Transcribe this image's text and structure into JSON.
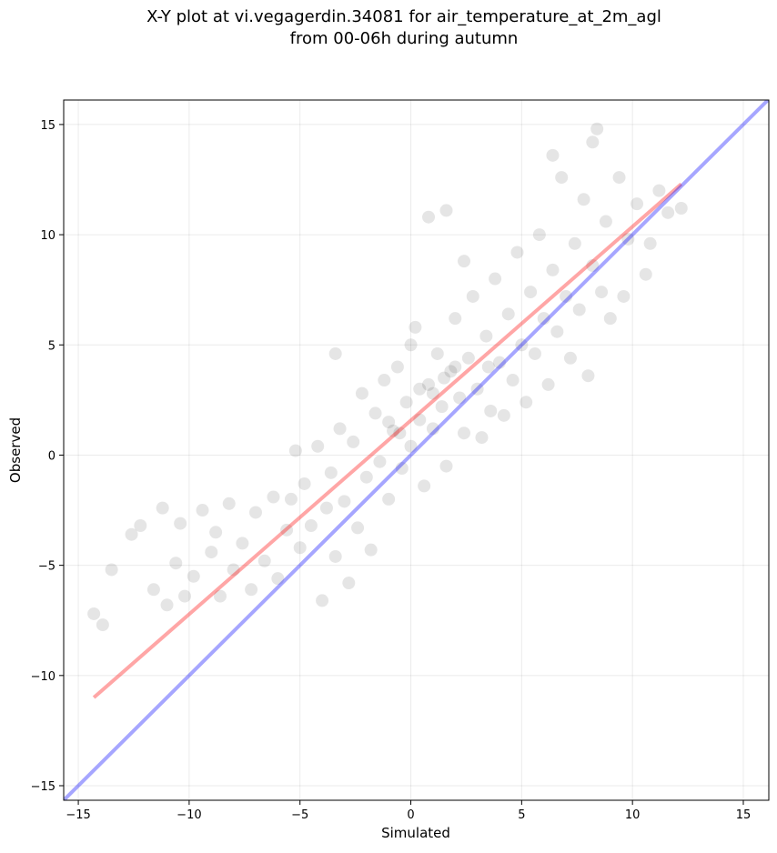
{
  "chart_data": {
    "type": "scatter",
    "title_lines": [
      "X-Y plot at vi.vegagerdin.34081 for air_temperature_at_2m_agl",
      "from 00-06h during autumn"
    ],
    "xlabel": "Simulated",
    "ylabel": "Observed",
    "xlim": [
      -15.66,
      16.15
    ],
    "ylim": [
      -15.66,
      16.11
    ],
    "xticks": [
      {
        "value": -15,
        "label": "−15"
      },
      {
        "value": -10,
        "label": "−10"
      },
      {
        "value": -5,
        "label": "−5"
      },
      0,
      5,
      10,
      15
    ],
    "yticks": [
      {
        "value": -15,
        "label": "−15"
      },
      {
        "value": -10,
        "label": "−10"
      },
      {
        "value": -5,
        "label": "−5"
      },
      0,
      5,
      10,
      15
    ],
    "grid": true,
    "series": [
      {
        "type": "scatter",
        "color": "#000000",
        "opacity": 0.1,
        "x": [
          -14.3,
          -13.9,
          -13.5,
          -12.6,
          -12.2,
          -11.6,
          -11.2,
          -11.0,
          -10.6,
          -10.4,
          -10.2,
          -9.8,
          -9.4,
          -9.0,
          -8.8,
          -8.6,
          -8.2,
          -8.0,
          -7.6,
          -7.2,
          -7.0,
          -6.6,
          -6.2,
          -6.0,
          -5.6,
          -5.4,
          -5.2,
          -5.0,
          -4.8,
          -4.5,
          -4.2,
          -4.0,
          -3.8,
          -3.6,
          -3.4,
          -3.2,
          -3.0,
          -2.8,
          -2.6,
          -2.4,
          -2.2,
          -2.0,
          -1.8,
          -1.6,
          -1.4,
          -1.2,
          -1.0,
          -0.8,
          -0.6,
          -0.4,
          -0.2,
          0.0,
          0.2,
          0.4,
          0.6,
          0.8,
          1.0,
          1.2,
          1.4,
          1.6,
          1.8,
          2.0,
          2.2,
          2.4,
          2.6,
          2.8,
          3.0,
          3.2,
          3.4,
          3.6,
          3.8,
          4.0,
          4.2,
          4.4,
          4.6,
          4.8,
          5.0,
          5.2,
          5.4,
          5.6,
          5.8,
          6.0,
          6.2,
          6.4,
          6.6,
          6.8,
          7.0,
          7.2,
          7.4,
          7.6,
          7.8,
          8.0,
          8.2,
          8.4,
          8.6,
          8.8,
          9.0,
          9.4,
          9.6,
          9.8,
          10.2,
          10.6,
          10.8,
          11.2,
          11.6,
          12.2,
          1.6,
          0.8,
          6.4,
          8.2,
          -3.4,
          0.0,
          2.4,
          0.4,
          1.0,
          1.5,
          2.0,
          -0.5,
          -1.0,
          3.5
        ],
        "y": [
          -7.2,
          -7.7,
          -5.2,
          -3.6,
          -3.2,
          -6.1,
          -2.4,
          -6.8,
          -4.9,
          -3.1,
          -6.4,
          -5.5,
          -2.5,
          -4.4,
          -3.5,
          -6.4,
          -2.2,
          -5.2,
          -4.0,
          -6.1,
          -2.6,
          -4.8,
          -1.9,
          -5.6,
          -3.4,
          -2.0,
          0.2,
          -4.2,
          -1.3,
          -3.2,
          0.4,
          -6.6,
          -2.4,
          -0.8,
          -4.6,
          1.2,
          -2.1,
          -5.8,
          0.6,
          -3.3,
          2.8,
          -1.0,
          -4.3,
          1.9,
          -0.3,
          3.4,
          -2.0,
          1.1,
          4.0,
          -0.6,
          2.4,
          0.4,
          5.8,
          1.6,
          -1.4,
          3.2,
          1.2,
          4.6,
          2.2,
          -0.5,
          3.8,
          6.2,
          2.6,
          1.0,
          4.4,
          7.2,
          3.0,
          0.8,
          5.4,
          2.0,
          8.0,
          4.2,
          1.8,
          6.4,
          3.4,
          9.2,
          5.0,
          2.4,
          7.4,
          4.6,
          10.0,
          6.2,
          3.2,
          8.4,
          5.6,
          12.6,
          7.2,
          4.4,
          9.6,
          6.6,
          11.6,
          3.6,
          8.6,
          14.8,
          7.4,
          10.6,
          6.2,
          12.6,
          7.2,
          9.8,
          11.4,
          8.2,
          9.6,
          12.0,
          11.0,
          11.2,
          11.1,
          10.8,
          13.6,
          14.2,
          4.6,
          5.0,
          8.8,
          3.0,
          2.8,
          3.5,
          4.0,
          1.0,
          1.5,
          4.0
        ]
      },
      {
        "type": "line",
        "color": "#ff0000",
        "opacity": 0.35,
        "x": [
          -14.3,
          12.2
        ],
        "y": [
          -11.0,
          12.3
        ]
      },
      {
        "type": "line",
        "color": "#0000ff",
        "opacity": 0.35,
        "x": [
          -16,
          16.2
        ],
        "y": [
          -16,
          16.2
        ]
      }
    ]
  }
}
